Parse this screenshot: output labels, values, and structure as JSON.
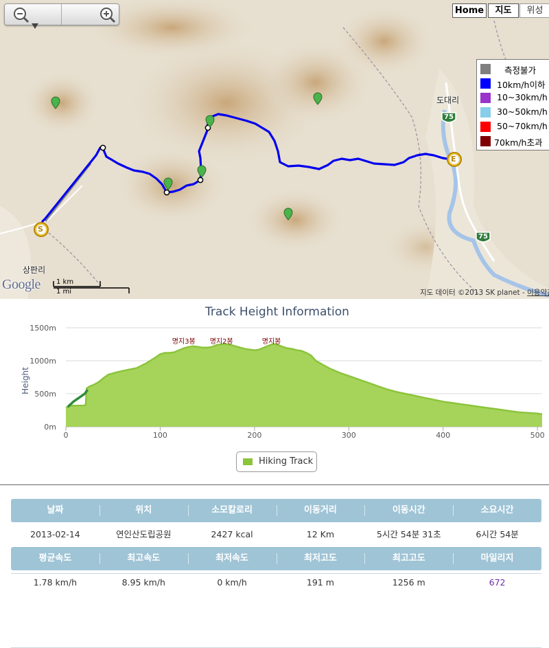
{
  "map": {
    "zoom_out_icon": "zoom-out-icon",
    "zoom_in_icon": "zoom-in-icon",
    "map_types": [
      "Home",
      "지도",
      "위성"
    ],
    "legend": [
      {
        "label": "측정불가",
        "color": "#808080"
      },
      {
        "label": "10km/h이하",
        "color": "#0000ff"
      },
      {
        "label": "10~30km/h",
        "color": "#9933cc"
      },
      {
        "label": "30~50km/h",
        "color": "#87ceeb"
      },
      {
        "label": "50~70km/h",
        "color": "#ff0000"
      },
      {
        "label": "70km/h초과",
        "color": "#800000"
      }
    ],
    "places": {
      "village_east": "도대리",
      "village_west": "상판리",
      "road_number_top": "75",
      "road_number_bottom": "75"
    },
    "markers": {
      "start": "S",
      "end": "E"
    },
    "logo": "Google",
    "scale": {
      "km": "1 km",
      "mi": "1 mi"
    },
    "copyright": {
      "text": "지도 데이터 ©2013 SK planet - ",
      "terms": "이용약관"
    },
    "track_color": "#0000ee",
    "gap_color": "#888888"
  },
  "chart": {
    "title": "Track Height Information",
    "ylabel": "Height",
    "legend_label": "Hiking Track",
    "peaks": [
      "명지3봉",
      "명지2봉",
      "명지봉"
    ]
  },
  "chart_data": {
    "type": "area",
    "title": "Track Height Information",
    "xlabel": "",
    "ylabel": "Height",
    "x_ticks": [
      "0",
      "100",
      "200",
      "300",
      "400",
      "500"
    ],
    "y_ticks": [
      "0m",
      "500m",
      "1000m",
      "1500m"
    ],
    "xlim": [
      0,
      505
    ],
    "ylim": [
      0,
      1500
    ],
    "grid": true,
    "legend_placement": "bottom",
    "series": [
      {
        "name": "Hiking Track",
        "color": "#8cc43c",
        "x": [
          0,
          2,
          5,
          8,
          12,
          15,
          18,
          21,
          22,
          25,
          30,
          35,
          40,
          45,
          55,
          65,
          75,
          85,
          95,
          100,
          105,
          110,
          115,
          120,
          125,
          130,
          135,
          140,
          145,
          150,
          155,
          160,
          165,
          170,
          175,
          180,
          185,
          190,
          195,
          200,
          205,
          210,
          215,
          220,
          225,
          230,
          235,
          240,
          245,
          250,
          255,
          260,
          265,
          270,
          275,
          280,
          285,
          290,
          300,
          310,
          320,
          330,
          340,
          350,
          360,
          370,
          380,
          390,
          400,
          410,
          420,
          430,
          440,
          450,
          460,
          470,
          480,
          490,
          500,
          505
        ],
        "values": [
          290,
          300,
          320,
          320,
          320,
          320,
          320,
          330,
          580,
          610,
          640,
          680,
          740,
          790,
          830,
          860,
          890,
          960,
          1050,
          1100,
          1120,
          1120,
          1130,
          1160,
          1190,
          1210,
          1220,
          1210,
          1200,
          1200,
          1210,
          1240,
          1250,
          1250,
          1240,
          1220,
          1200,
          1180,
          1170,
          1160,
          1170,
          1200,
          1230,
          1256,
          1240,
          1210,
          1190,
          1180,
          1160,
          1150,
          1120,
          1080,
          1000,
          960,
          920,
          880,
          850,
          820,
          770,
          720,
          670,
          620,
          570,
          530,
          500,
          470,
          440,
          410,
          380,
          360,
          340,
          320,
          300,
          280,
          260,
          240,
          220,
          210,
          200,
          191
        ]
      },
      {
        "name": "",
        "color": "#2e8b3a",
        "x": [
          2,
          8,
          15,
          20,
          23
        ],
        "values": [
          300,
          380,
          450,
          500,
          560
        ]
      }
    ],
    "annotations": [
      {
        "label": "명지3봉",
        "x": 125
      },
      {
        "label": "명지2봉",
        "x": 165
      },
      {
        "label": "명지봉",
        "x": 218
      }
    ]
  },
  "stats": {
    "header1": [
      "날짜",
      "위치",
      "소모칼로리",
      "이동거리",
      "이동시간",
      "소요시간"
    ],
    "row1": [
      "2013-02-14",
      "연인산도립공원",
      "2427 kcal",
      "12 Km",
      "5시간 54분 31초",
      "6시간 54분"
    ],
    "header2": [
      "평균속도",
      "최고속도",
      "최저속도",
      "최저고도",
      "최고고도",
      "마일리지"
    ],
    "row2": [
      "1.78 km/h",
      "8.95 km/h",
      "0 km/h",
      "191  m",
      "1256 m",
      "672"
    ]
  }
}
